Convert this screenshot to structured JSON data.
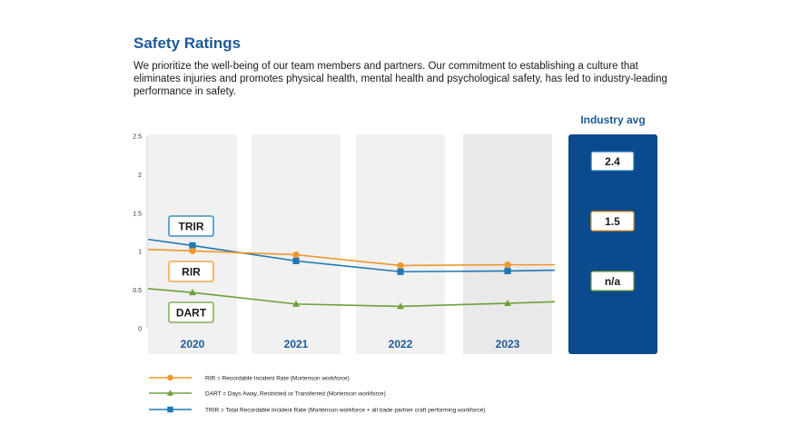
{
  "header": {
    "title": "Safety Ratings",
    "description": "We prioritize the well-being of our team members and partners. Our commitment to establishing a culture that eliminates injuries and promotes physical health, mental health and psychological safety, has led to industry-leading performance in safety."
  },
  "colors": {
    "rir": "#f0962a",
    "dart": "#6fa13a",
    "trir": "#1f78b4",
    "band": "#f1f1f1",
    "band_last": "#e9e9e9",
    "panel": "#0b4a8c",
    "title": "#1d5a96"
  },
  "chart_data": {
    "type": "line",
    "categories": [
      "2020",
      "2021",
      "2022",
      "2023"
    ],
    "y_ticks": [
      "0",
      "0.5",
      "1",
      "1.5",
      "2",
      "2.5"
    ],
    "ylim": [
      0,
      2.5
    ],
    "series": [
      {
        "name": "TRIR",
        "key": "trir",
        "marker": "square",
        "values": [
          1.08,
          0.88,
          0.74,
          0.75
        ],
        "start": 1.16,
        "end": 0.76
      },
      {
        "name": "RIR",
        "key": "rir",
        "marker": "circle",
        "values": [
          1.01,
          0.96,
          0.82,
          0.83
        ],
        "start": 1.03,
        "end": 0.83
      },
      {
        "name": "DART",
        "key": "dart",
        "marker": "triangle",
        "values": [
          0.47,
          0.32,
          0.29,
          0.33
        ],
        "start": 0.52,
        "end": 0.35
      }
    ],
    "legend": [
      {
        "key": "rir",
        "marker": "circle",
        "text": "RIR = Recordable Incident Rate (Mortenson workforce)"
      },
      {
        "key": "dart",
        "marker": "triangle",
        "text": "DART = Days Away, Restricted or Transferred (Mortenson workforce)"
      },
      {
        "key": "trir",
        "marker": "square",
        "text": "TRIR = Total Recordable Incident Rate (Mortenson workforce + all trade partner craft performing workforce)"
      }
    ],
    "industry_avg": {
      "title": "Industry avg",
      "values": [
        {
          "key": "trir",
          "label": "2.4"
        },
        {
          "key": "rir",
          "label": "1.5"
        },
        {
          "key": "dart",
          "label": "n/a"
        }
      ]
    }
  }
}
